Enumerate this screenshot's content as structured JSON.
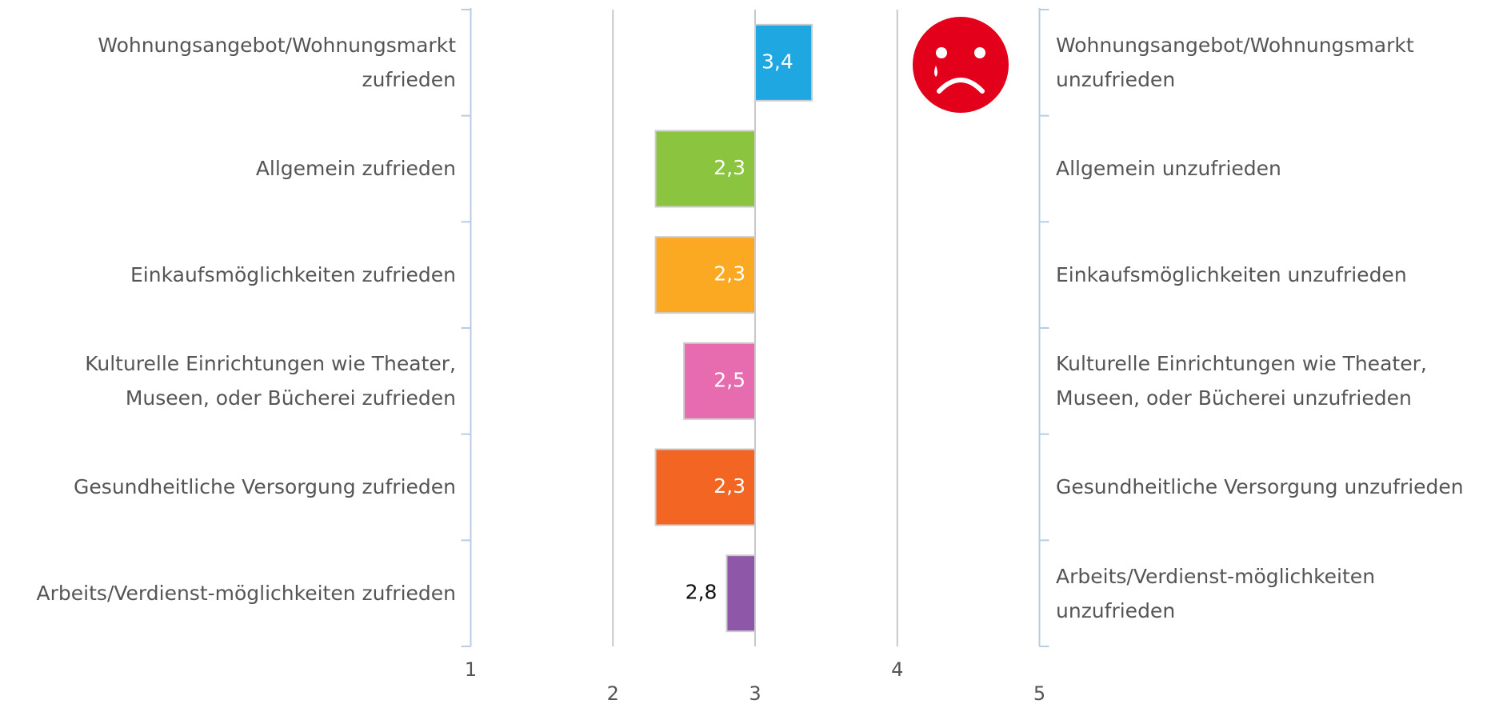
{
  "chart_data": {
    "type": "bar",
    "orientation": "horizontal",
    "categories": [
      "Wohnungsangebot/Wohnungsmarkt zufrieden",
      "Allgemein zufrieden",
      "Einkaufsmöglichkeiten zufrieden",
      "Kulturelle Einrichtungen wie Theater, Museen, oder Bücherei zufrieden",
      "Gesundheitliche Versorgung zufrieden",
      "Arbeits/Verdienst-möglichkeiten zufrieden"
    ],
    "right_labels": [
      "Wohnungsangebot/Wohnungsmarkt unzufrieden",
      "Allgemein unzufrieden",
      "Einkaufsmöglichkeiten unzufrieden",
      "Kulturelle Einrichtungen wie Theater, Museen, oder Bücherei unzufrieden",
      "Gesundheitliche Versorgung unzufrieden",
      "Arbeits/Verdienst-möglichkeiten unzufrieden"
    ],
    "values": [
      3.4,
      2.3,
      2.3,
      2.5,
      2.3,
      2.8
    ],
    "value_labels": [
      "3,4",
      "2,3",
      "2,3",
      "2,5",
      "2,3",
      "2,8"
    ],
    "colors": [
      "#1ea7e1",
      "#8bc43f",
      "#fba823",
      "#e76caf",
      "#f26522",
      "#8e57a8"
    ],
    "label_colors": [
      "#ffffff",
      "#ffffff",
      "#ffffff",
      "#ffffff",
      "#ffffff",
      "#111111"
    ],
    "xlim": [
      1,
      5
    ],
    "xticks": [
      1,
      2,
      3,
      4,
      5
    ],
    "grid": true
  }
}
